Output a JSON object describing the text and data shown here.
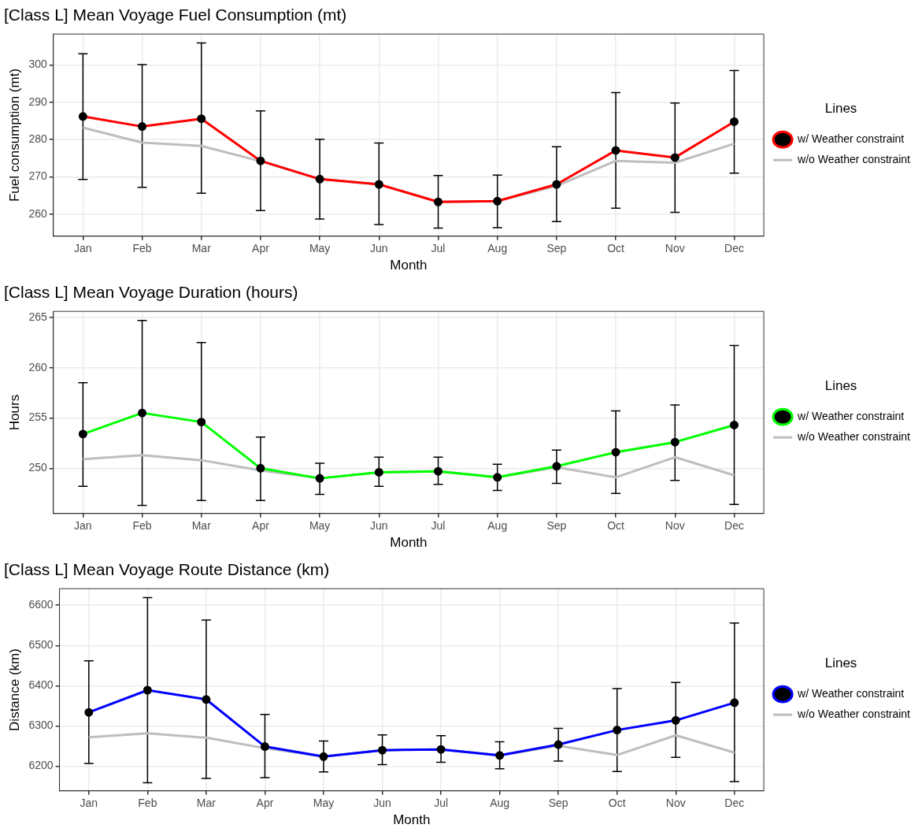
{
  "chart_data": [
    {
      "type": "line",
      "title": "[Class L] Mean Voyage Fuel Consumption (mt)",
      "xlabel": "Month",
      "ylabel": "Fuel consumption (mt)",
      "legend_title": "Lines",
      "legend": "right",
      "grid": true,
      "categories": [
        "Jan",
        "Feb",
        "Mar",
        "Apr",
        "May",
        "Jun",
        "Jul",
        "Aug",
        "Sep",
        "Oct",
        "Nov",
        "Dec"
      ],
      "ylim": [
        254.1,
        308.3
      ],
      "yticks": [
        260,
        270,
        280,
        290,
        300
      ],
      "series": [
        {
          "name": "w/ Weather constraint",
          "color": "#ff0000",
          "marker": "circle",
          "values": [
            286.2,
            283.5,
            285.6,
            274.3,
            269.4,
            268,
            263.3,
            263.5,
            268,
            277.1,
            275.2,
            284.8
          ],
          "errors": [
            [
              269.3,
              303
            ],
            [
              267.2,
              300.1
            ],
            [
              265.6,
              305.9
            ],
            [
              261,
              287.7
            ],
            [
              258.7,
              280.1
            ],
            [
              257.2,
              279.1
            ],
            [
              256.3,
              270.4
            ],
            [
              256.4,
              270.5
            ],
            [
              258,
              278.1
            ],
            [
              261.6,
              292.6
            ],
            [
              260.5,
              289.8
            ],
            [
              271,
              298.5
            ]
          ]
        },
        {
          "name": "w/o Weather constraint",
          "color": "#bebebe",
          "values": [
            283.2,
            279.2,
            278.3,
            274.2,
            269.4,
            268,
            263.3,
            263.5,
            267.6,
            274.3,
            273.8,
            278.9
          ]
        }
      ]
    },
    {
      "type": "line",
      "title": "[Class L] Mean Voyage Duration (hours)",
      "xlabel": "Month",
      "ylabel": "Hours",
      "legend_title": "Lines",
      "legend": "right",
      "grid": true,
      "categories": [
        "Jan",
        "Feb",
        "Mar",
        "Apr",
        "May",
        "Jun",
        "Jul",
        "Aug",
        "Sep",
        "Oct",
        "Nov",
        "Dec"
      ],
      "ylim": [
        245.5,
        265.6
      ],
      "yticks": [
        250,
        255,
        260,
        265
      ],
      "series": [
        {
          "name": "w/ Weather constraint",
          "color": "#00ff00",
          "marker": "circle",
          "values": [
            253.4,
            255.5,
            254.6,
            250,
            249,
            249.6,
            249.7,
            249.1,
            250.2,
            251.6,
            252.6,
            254.3
          ],
          "errors": [
            [
              248.2,
              258.5
            ],
            [
              246.3,
              264.7
            ],
            [
              246.8,
              262.5
            ],
            [
              246.8,
              253.1
            ],
            [
              247.4,
              250.5
            ],
            [
              248.2,
              251.1
            ],
            [
              248.4,
              251.1
            ],
            [
              247.8,
              250.4
            ],
            [
              248.5,
              251.8
            ],
            [
              247.5,
              255.7
            ],
            [
              248.8,
              256.3
            ],
            [
              246.4,
              262.2
            ]
          ]
        },
        {
          "name": "w/o Weather constraint",
          "color": "#bebebe",
          "values": [
            250.9,
            251.3,
            250.8,
            249.8,
            249,
            249.6,
            249.7,
            249.1,
            250.1,
            249.1,
            251.1,
            249.3
          ]
        }
      ]
    },
    {
      "type": "line",
      "title": "[Class L] Mean Voyage Route Distance (km)",
      "xlabel": "Month",
      "ylabel": "Distance (km)",
      "legend_title": "Lines",
      "legend": "right",
      "grid": true,
      "categories": [
        "Jan",
        "Feb",
        "Mar",
        "Apr",
        "May",
        "Jun",
        "Jul",
        "Aug",
        "Sep",
        "Oct",
        "Nov",
        "Dec"
      ],
      "ylim": [
        6139,
        6641
      ],
      "yticks": [
        6200,
        6300,
        6400,
        6500,
        6600
      ],
      "series": [
        {
          "name": "w/ Weather constraint",
          "color": "#0000ff",
          "marker": "circle",
          "values": [
            6334,
            6389,
            6366,
            6249,
            6224,
            6240,
            6242,
            6227,
            6254,
            6290,
            6314,
            6358
          ],
          "errors": [
            [
              6207,
              6462
            ],
            [
              6159,
              6619
            ],
            [
              6170,
              6563
            ],
            [
              6172,
              6329
            ],
            [
              6186,
              6263
            ],
            [
              6204,
              6278
            ],
            [
              6210,
              6276
            ],
            [
              6194,
              6261
            ],
            [
              6213,
              6294
            ],
            [
              6187,
              6393
            ],
            [
              6222,
              6408
            ],
            [
              6162,
              6556
            ]
          ]
        },
        {
          "name": "w/o Weather constraint",
          "color": "#bebebe",
          "values": [
            6272,
            6282,
            6271,
            6245,
            6224,
            6240,
            6242,
            6227,
            6251,
            6228,
            6277,
            6234
          ]
        }
      ]
    }
  ]
}
